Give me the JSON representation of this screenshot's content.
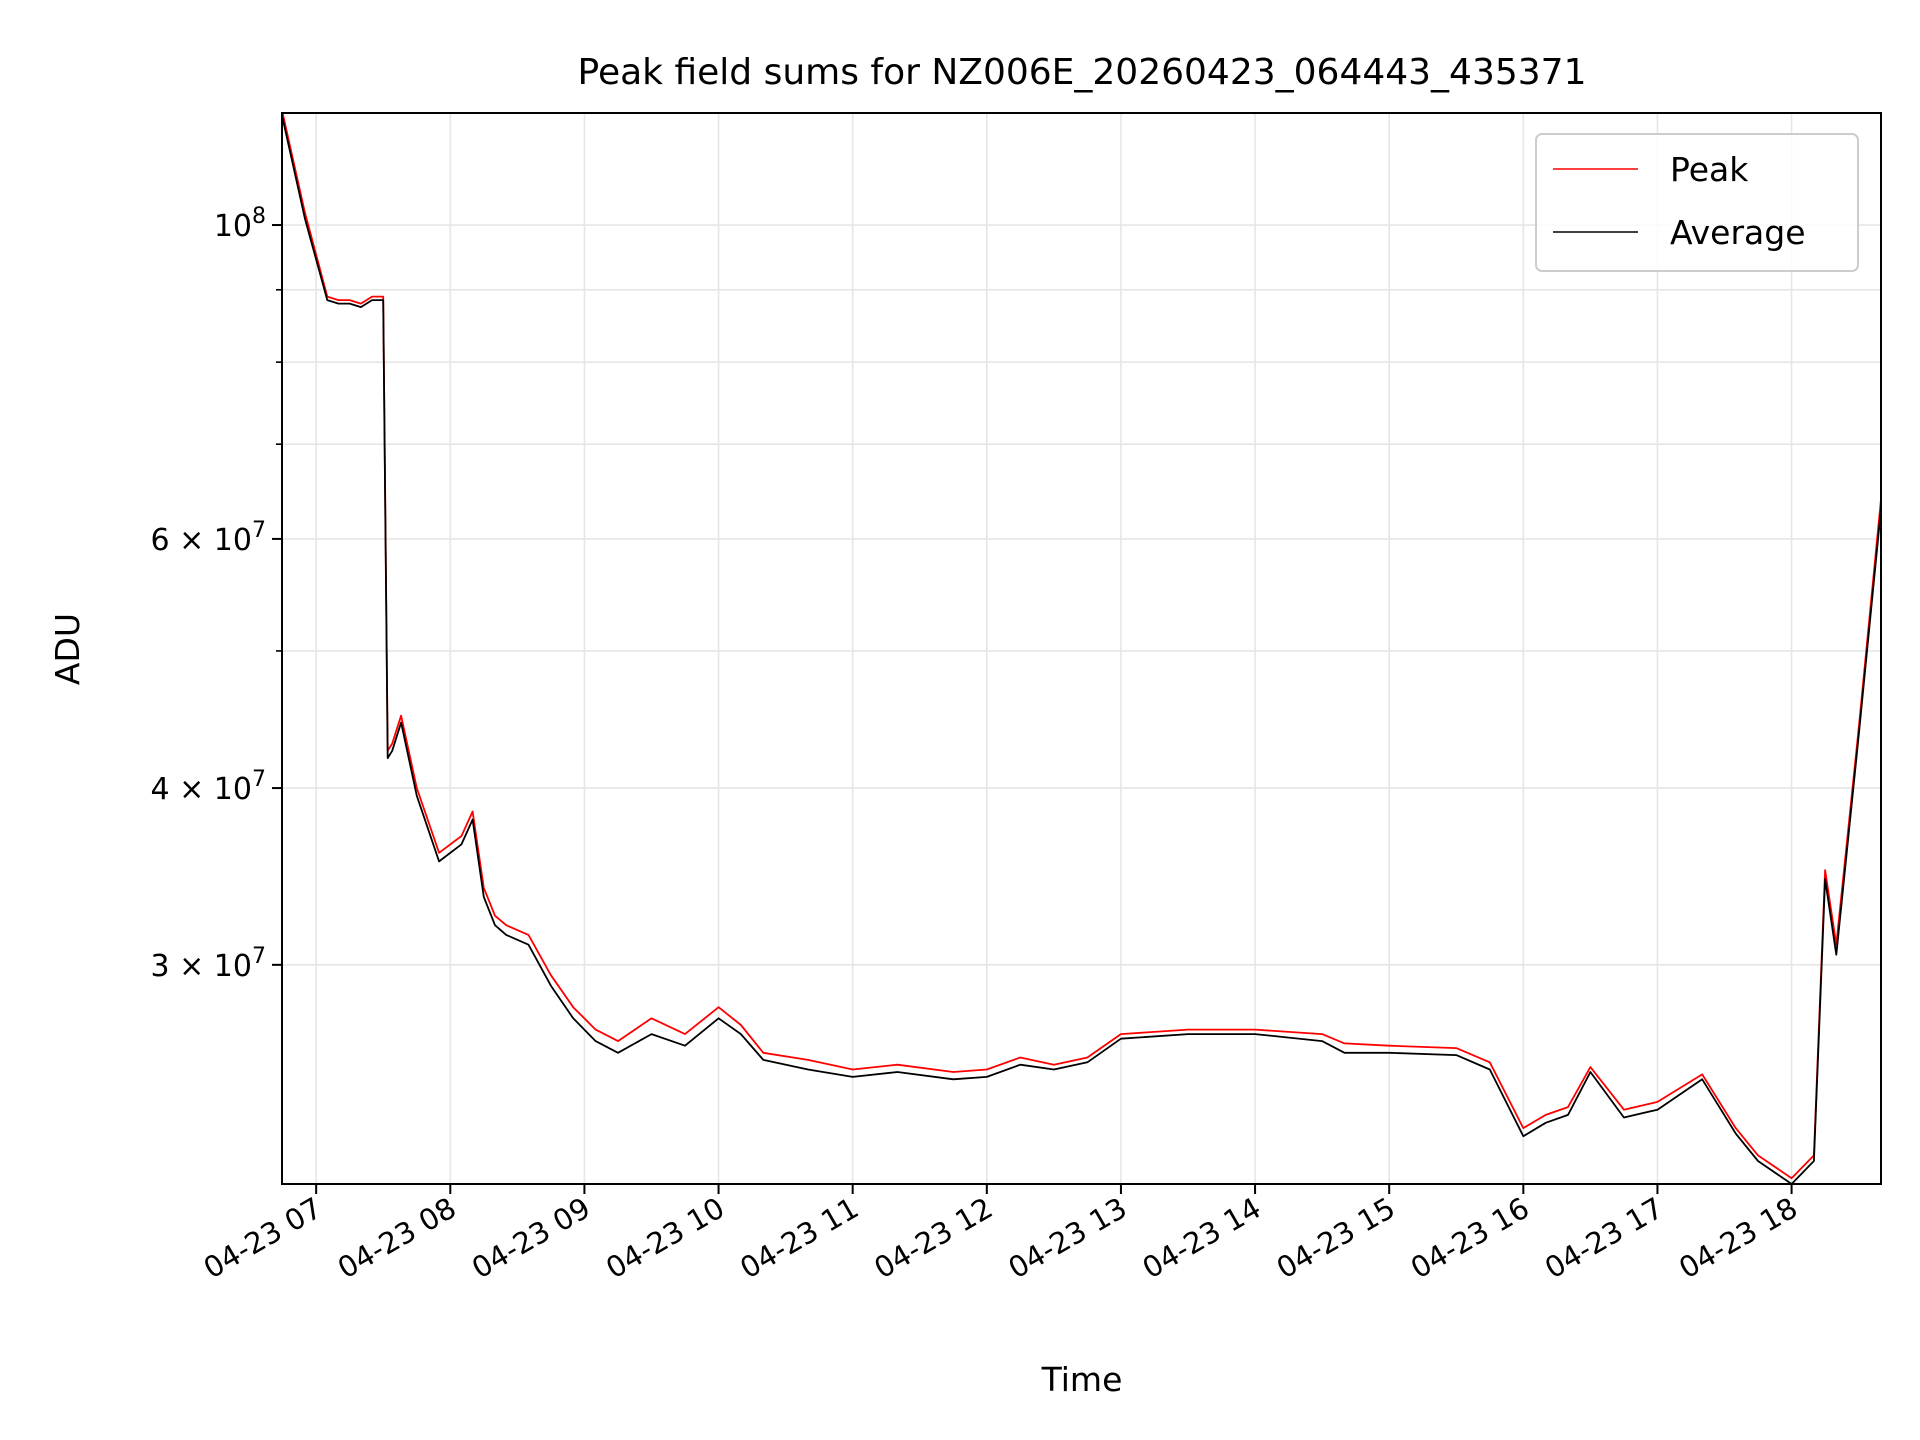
{
  "chart_data": {
    "type": "line",
    "title": "Peak field sums for NZ006E_20260423_064443_435371",
    "xlabel": "Time",
    "ylabel": "ADU",
    "y_scale": "log",
    "ylim": [
      21000000,
      120000000
    ],
    "xlim": [
      "2026-04-23 06:44:43",
      "2026-04-23 18:40:00"
    ],
    "grid": true,
    "legend_position": "top-right",
    "x_ticks": [
      "04-23 07",
      "04-23 08",
      "04-23 09",
      "04-23 10",
      "04-23 11",
      "04-23 12",
      "04-23 13",
      "04-23 14",
      "04-23 15",
      "04-23 16",
      "04-23 17",
      "04-23 18"
    ],
    "y_ticks": [
      {
        "value": 100000000,
        "mantissa": "",
        "base": "10",
        "exp": "8"
      },
      {
        "value": 60000000,
        "mantissa": "6",
        "base": "10",
        "exp": "7"
      },
      {
        "value": 40000000,
        "mantissa": "4",
        "base": "10",
        "exp": "7"
      },
      {
        "value": 30000000,
        "mantissa": "3",
        "base": "10",
        "exp": "7"
      }
    ],
    "minor_y_ticks": [
      90000000,
      80000000,
      70000000,
      50000000
    ],
    "series": [
      {
        "name": "Peak",
        "color": "#ff0000",
        "x": [
          "2026-04-23 06:45",
          "2026-04-23 06:55",
          "2026-04-23 07:05",
          "2026-04-23 07:10",
          "2026-04-23 07:15",
          "2026-04-23 07:20",
          "2026-04-23 07:25",
          "2026-04-23 07:30",
          "2026-04-23 07:32",
          "2026-04-23 07:34",
          "2026-04-23 07:38",
          "2026-04-23 07:45",
          "2026-04-23 07:55",
          "2026-04-23 08:05",
          "2026-04-23 08:10",
          "2026-04-23 08:15",
          "2026-04-23 08:20",
          "2026-04-23 08:25",
          "2026-04-23 08:35",
          "2026-04-23 08:45",
          "2026-04-23 08:55",
          "2026-04-23 09:05",
          "2026-04-23 09:15",
          "2026-04-23 09:30",
          "2026-04-23 09:45",
          "2026-04-23 10:00",
          "2026-04-23 10:10",
          "2026-04-23 10:20",
          "2026-04-23 10:40",
          "2026-04-23 11:00",
          "2026-04-23 11:20",
          "2026-04-23 11:45",
          "2026-04-23 12:00",
          "2026-04-23 12:15",
          "2026-04-23 12:30",
          "2026-04-23 12:45",
          "2026-04-23 13:00",
          "2026-04-23 13:30",
          "2026-04-23 14:00",
          "2026-04-23 14:30",
          "2026-04-23 14:40",
          "2026-04-23 15:00",
          "2026-04-23 15:30",
          "2026-04-23 15:45",
          "2026-04-23 16:00",
          "2026-04-23 16:10",
          "2026-04-23 16:20",
          "2026-04-23 16:30",
          "2026-04-23 16:45",
          "2026-04-23 17:00",
          "2026-04-23 17:20",
          "2026-04-23 17:35",
          "2026-04-23 17:45",
          "2026-04-23 18:00",
          "2026-04-23 18:10",
          "2026-04-23 18:15",
          "2026-04-23 18:20",
          "2026-04-23 18:30",
          "2026-04-23 18:40"
        ],
        "values": [
          120000000,
          102000000,
          89000000,
          88500000,
          88500000,
          88000000,
          89000000,
          89000000,
          42500000,
          43000000,
          45000000,
          40000000,
          36000000,
          37000000,
          38500000,
          34000000,
          32500000,
          32000000,
          31500000,
          29500000,
          28000000,
          27000000,
          26500000,
          27500000,
          26800000,
          28000000,
          27200000,
          26000000,
          25700000,
          25300000,
          25500000,
          25200000,
          25300000,
          25800000,
          25500000,
          25800000,
          26800000,
          27000000,
          27000000,
          26800000,
          26400000,
          26300000,
          26200000,
          25600000,
          23000000,
          23500000,
          23800000,
          25400000,
          23700000,
          24000000,
          25100000,
          23000000,
          22000000,
          21200000,
          22000000,
          35000000,
          31000000,
          44000000,
          64000000
        ]
      },
      {
        "name": "Average",
        "color": "#000000",
        "x": [
          "2026-04-23 06:45",
          "2026-04-23 06:55",
          "2026-04-23 07:05",
          "2026-04-23 07:10",
          "2026-04-23 07:15",
          "2026-04-23 07:20",
          "2026-04-23 07:25",
          "2026-04-23 07:30",
          "2026-04-23 07:32",
          "2026-04-23 07:34",
          "2026-04-23 07:38",
          "2026-04-23 07:45",
          "2026-04-23 07:55",
          "2026-04-23 08:05",
          "2026-04-23 08:10",
          "2026-04-23 08:15",
          "2026-04-23 08:20",
          "2026-04-23 08:25",
          "2026-04-23 08:35",
          "2026-04-23 08:45",
          "2026-04-23 08:55",
          "2026-04-23 09:05",
          "2026-04-23 09:15",
          "2026-04-23 09:30",
          "2026-04-23 09:45",
          "2026-04-23 10:00",
          "2026-04-23 10:10",
          "2026-04-23 10:20",
          "2026-04-23 10:40",
          "2026-04-23 11:00",
          "2026-04-23 11:20",
          "2026-04-23 11:45",
          "2026-04-23 12:00",
          "2026-04-23 12:15",
          "2026-04-23 12:30",
          "2026-04-23 12:45",
          "2026-04-23 13:00",
          "2026-04-23 13:30",
          "2026-04-23 14:00",
          "2026-04-23 14:30",
          "2026-04-23 14:40",
          "2026-04-23 15:00",
          "2026-04-23 15:30",
          "2026-04-23 15:45",
          "2026-04-23 16:00",
          "2026-04-23 16:10",
          "2026-04-23 16:20",
          "2026-04-23 16:30",
          "2026-04-23 16:45",
          "2026-04-23 17:00",
          "2026-04-23 17:20",
          "2026-04-23 17:35",
          "2026-04-23 17:45",
          "2026-04-23 18:00",
          "2026-04-23 18:10",
          "2026-04-23 18:15",
          "2026-04-23 18:20",
          "2026-04-23 18:30",
          "2026-04-23 18:40"
        ],
        "values": [
          119000000,
          101000000,
          88500000,
          88000000,
          88000000,
          87500000,
          88500000,
          88500000,
          42000000,
          42500000,
          44500000,
          39500000,
          35500000,
          36500000,
          38000000,
          33500000,
          32000000,
          31500000,
          31000000,
          29000000,
          27500000,
          26500000,
          26000000,
          26800000,
          26300000,
          27500000,
          26800000,
          25700000,
          25300000,
          25000000,
          25200000,
          24900000,
          25000000,
          25500000,
          25300000,
          25600000,
          26600000,
          26800000,
          26800000,
          26500000,
          26000000,
          26000000,
          25900000,
          25300000,
          22700000,
          23200000,
          23500000,
          25200000,
          23400000,
          23700000,
          24900000,
          22800000,
          21800000,
          21000000,
          21800000,
          34500000,
          30500000,
          43500000,
          63000000
        ]
      }
    ]
  }
}
